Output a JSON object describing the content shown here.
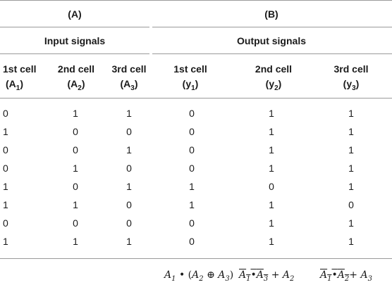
{
  "group_labels": {
    "a": "(A)",
    "b": "(B)"
  },
  "section_labels": {
    "input": "Input signals",
    "output": "Output signals"
  },
  "columns": [
    {
      "name": "1st cell",
      "symbol": "A",
      "sub": "1"
    },
    {
      "name": "2nd cell",
      "symbol": "A",
      "sub": "2"
    },
    {
      "name": "3rd cell",
      "symbol": "A",
      "sub": "3"
    },
    {
      "name": "1st cell",
      "symbol": "y",
      "sub": "1"
    },
    {
      "name": "2nd cell",
      "symbol": "y",
      "sub": "2"
    },
    {
      "name": "3rd cell",
      "symbol": "y",
      "sub": "3"
    }
  ],
  "rows": [
    [
      "0",
      "1",
      "1",
      "0",
      "1",
      "1"
    ],
    [
      "1",
      "0",
      "0",
      "0",
      "1",
      "1"
    ],
    [
      "0",
      "0",
      "1",
      "0",
      "1",
      "1"
    ],
    [
      "0",
      "1",
      "0",
      "0",
      "1",
      "1"
    ],
    [
      "1",
      "0",
      "1",
      "1",
      "0",
      "1"
    ],
    [
      "1",
      "1",
      "0",
      "1",
      "1",
      "0"
    ],
    [
      "0",
      "0",
      "0",
      "0",
      "1",
      "1"
    ],
    [
      "1",
      "1",
      "1",
      "0",
      "1",
      "1"
    ]
  ],
  "formulas": {
    "y1": {
      "a": "A",
      "a_sub": "1",
      "dot": "•",
      "open": "(",
      "b": "A",
      "b_sub": "2",
      "xor": "⊕",
      "c": "A",
      "c_sub": "3",
      "close": ")"
    },
    "y2": {
      "a": "A",
      "a_sub": "1",
      "dot": "•",
      "b": "A",
      "b_sub": "3",
      "plus": "+",
      "c": "A",
      "c_sub": "2"
    },
    "y3": {
      "a": "A",
      "a_sub": "1",
      "dot": "•",
      "b": "A",
      "b_sub": "2",
      "plus": "+",
      "c": "A",
      "c_sub": "3"
    }
  }
}
